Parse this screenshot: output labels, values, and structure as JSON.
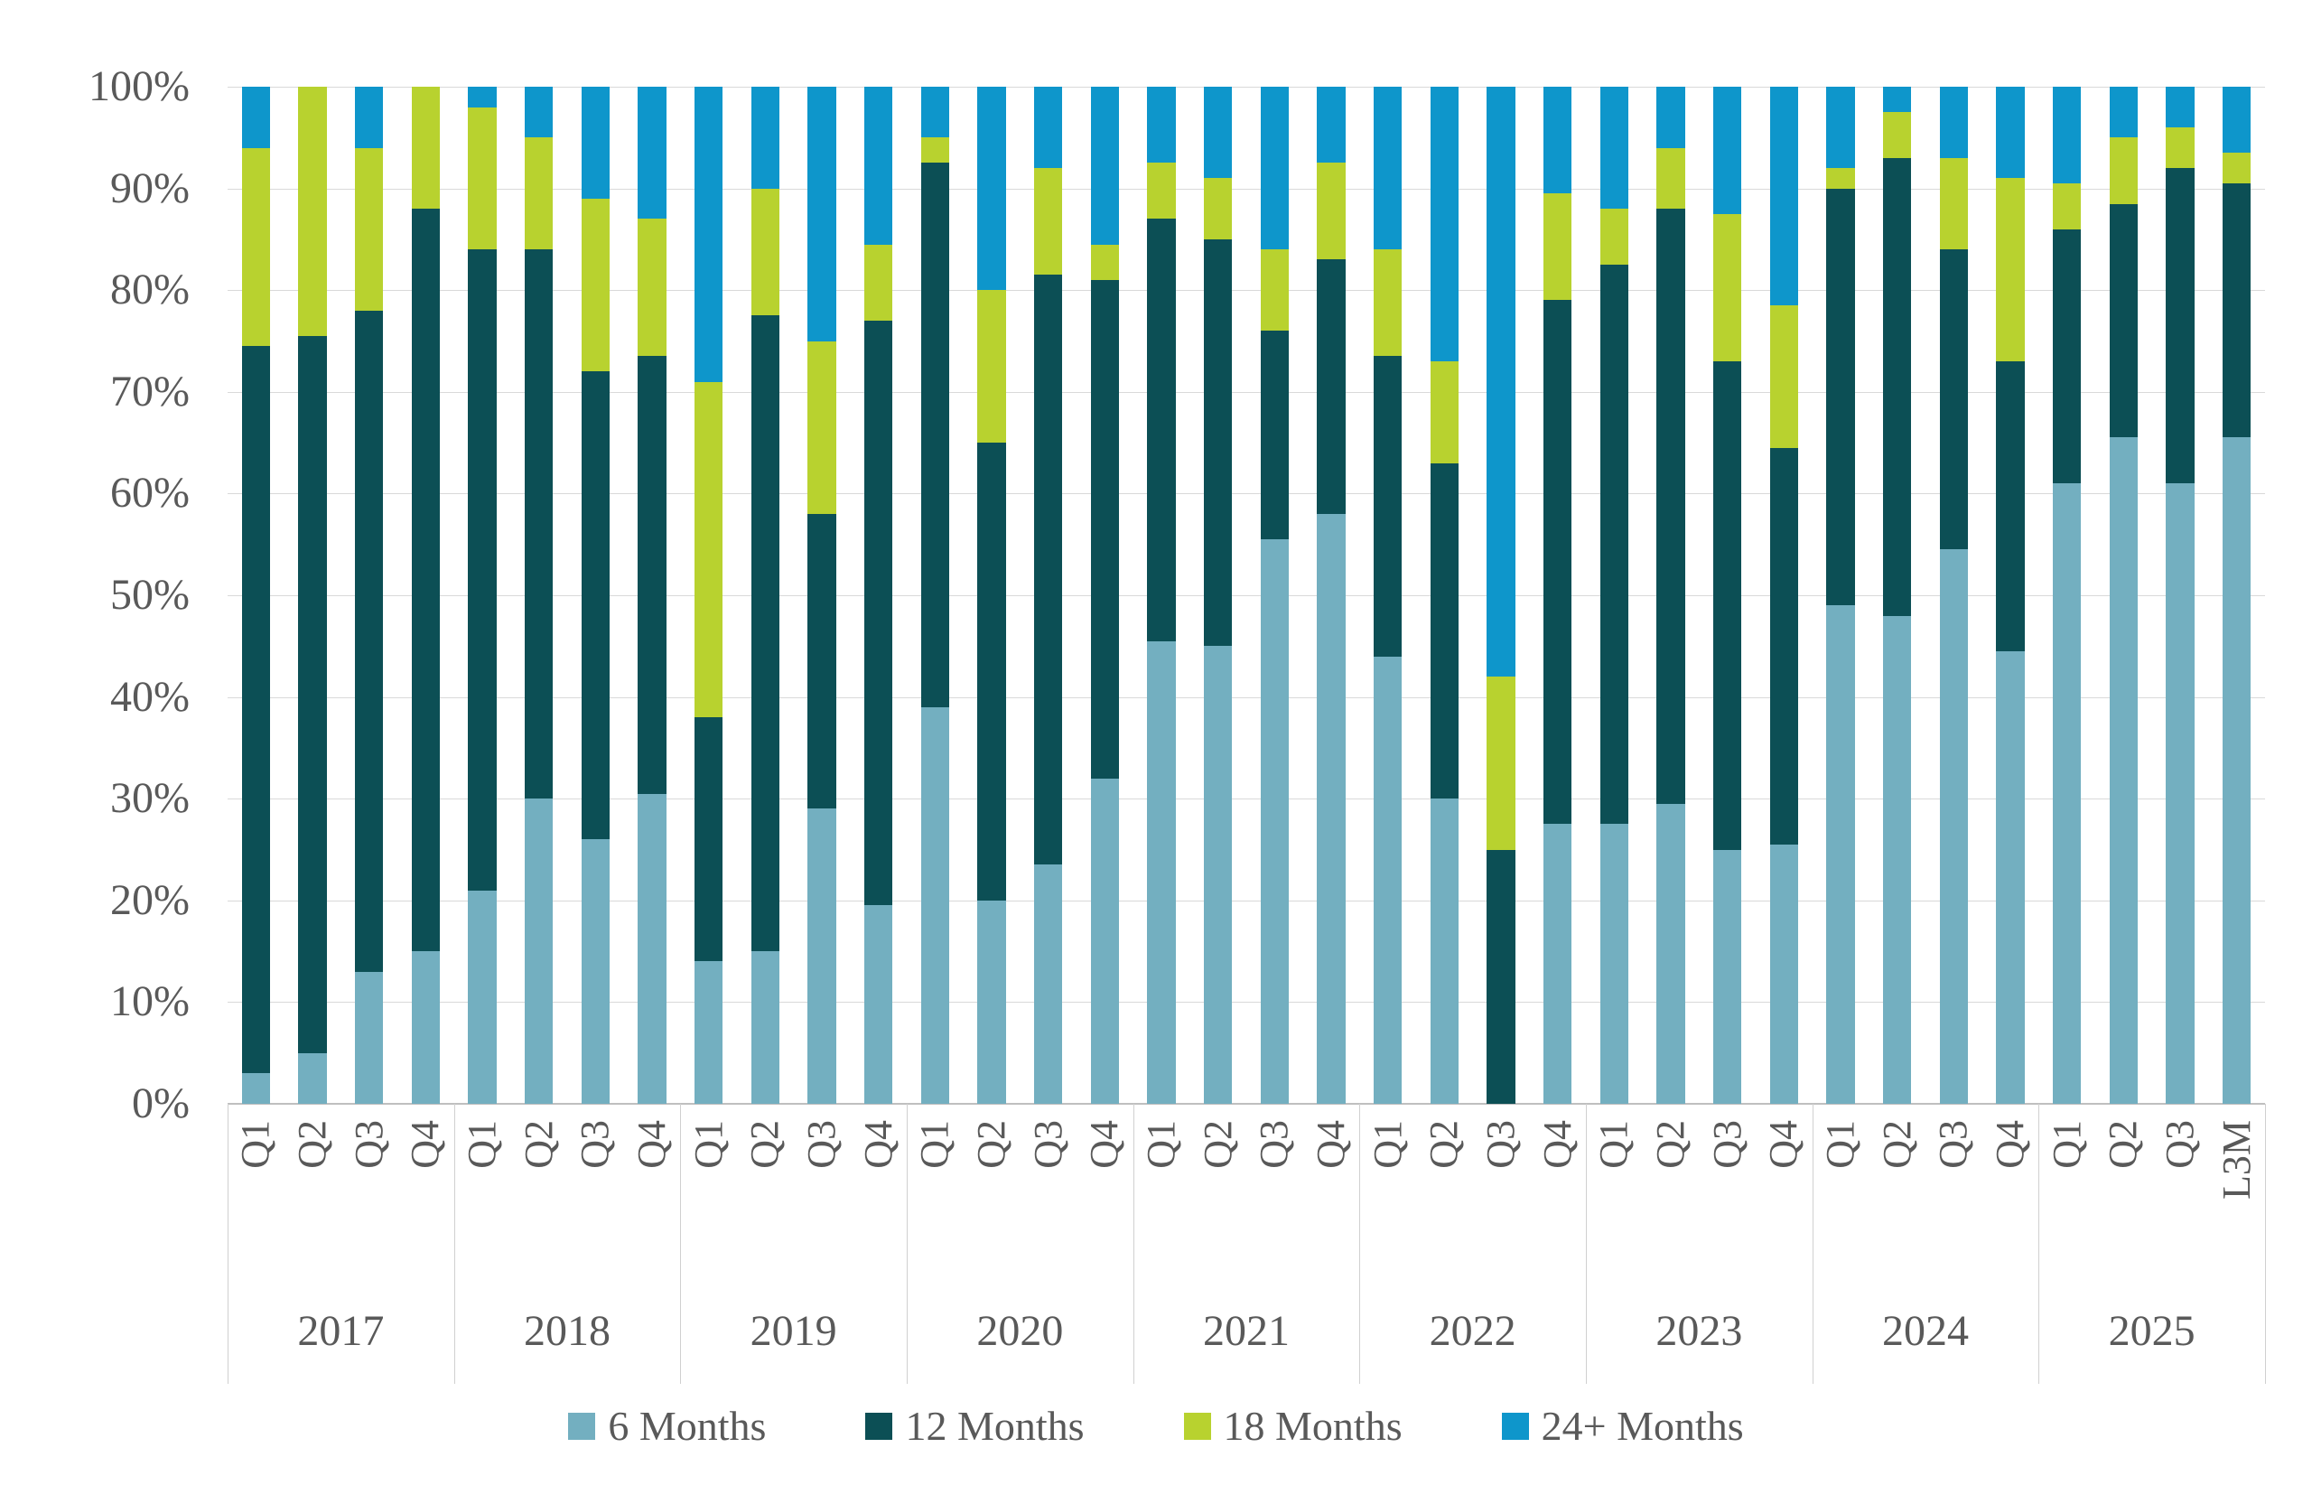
{
  "chart_data": {
    "type": "bar",
    "stacked": true,
    "stacked_100_percent": true,
    "title": "",
    "xlabel": "",
    "ylabel": "",
    "grid": "horizontal",
    "legend_position": "bottom",
    "y_axis": {
      "min": 0,
      "max": 100,
      "step": 10,
      "tick_labels": [
        "0%",
        "10%",
        "20%",
        "30%",
        "40%",
        "50%",
        "60%",
        "70%",
        "80%",
        "90%",
        "100%"
      ]
    },
    "year_groups": [
      {
        "year": "2017",
        "quarters": [
          "Q1",
          "Q2",
          "Q3",
          "Q4"
        ]
      },
      {
        "year": "2018",
        "quarters": [
          "Q1",
          "Q2",
          "Q3",
          "Q4"
        ]
      },
      {
        "year": "2019",
        "quarters": [
          "Q1",
          "Q2",
          "Q3",
          "Q4"
        ]
      },
      {
        "year": "2020",
        "quarters": [
          "Q1",
          "Q2",
          "Q3",
          "Q4"
        ]
      },
      {
        "year": "2021",
        "quarters": [
          "Q1",
          "Q2",
          "Q3",
          "Q4"
        ]
      },
      {
        "year": "2022",
        "quarters": [
          "Q1",
          "Q2",
          "Q3",
          "Q4"
        ]
      },
      {
        "year": "2023",
        "quarters": [
          "Q1",
          "Q2",
          "Q3",
          "Q4"
        ]
      },
      {
        "year": "2024",
        "quarters": [
          "Q1",
          "Q2",
          "Q3",
          "Q4"
        ]
      },
      {
        "year": "2025",
        "quarters": [
          "Q1",
          "Q2",
          "Q3",
          "L3M"
        ]
      }
    ],
    "series": [
      {
        "name": "6 Months",
        "color": "#73AFC0",
        "values": [
          3,
          5,
          13,
          15,
          21,
          30,
          26,
          30.5,
          14,
          15,
          29,
          19.5,
          39,
          20,
          23.5,
          32,
          45.5,
          45,
          55.5,
          58,
          44,
          30,
          0,
          27.5,
          27.5,
          29.5,
          25,
          25.5,
          49,
          48,
          54.5,
          44.5,
          61,
          65.5,
          61,
          65.5
        ]
      },
      {
        "name": "12 Months",
        "color": "#0C4F55",
        "values": [
          71.5,
          70.5,
          65,
          73,
          63,
          54,
          46,
          43,
          24,
          62.5,
          29,
          57.5,
          53.5,
          45,
          58,
          49,
          41.5,
          40,
          20.5,
          25,
          29.5,
          33,
          25,
          51.5,
          55,
          58.5,
          48,
          39,
          41,
          45,
          29.5,
          28.5,
          25,
          23,
          31,
          25
        ]
      },
      {
        "name": "18 Months",
        "color": "#B8D22F",
        "values": [
          19.5,
          24.5,
          16,
          12,
          14,
          11,
          17,
          13.5,
          33,
          12.5,
          17,
          7.5,
          2.5,
          15,
          10.5,
          3.5,
          5.5,
          6,
          8,
          9.5,
          10.5,
          10,
          17,
          10.5,
          5.5,
          6,
          14.5,
          14,
          2,
          4.5,
          9,
          18,
          4.5,
          6.5,
          4,
          3
        ]
      },
      {
        "name": "24+ Months",
        "color": "#0E96CB",
        "values": [
          6,
          0,
          6,
          0,
          2,
          5,
          11,
          13,
          29,
          10,
          25,
          15.5,
          5,
          20,
          8,
          15.5,
          7.5,
          9,
          16,
          7.5,
          16,
          27,
          58,
          10.5,
          12,
          6,
          12.5,
          21.5,
          8,
          2.5,
          7,
          9,
          9.5,
          5,
          4,
          6.5
        ]
      }
    ],
    "legend": [
      "6 Months",
      "12 Months",
      "18 Months",
      "24+ Months"
    ],
    "colors": {
      "gridline": "#d9d9d9",
      "axis_line": "#bfbfbf",
      "separator": "#d0d0d0",
      "text": "#595959",
      "background": "#ffffff"
    }
  }
}
